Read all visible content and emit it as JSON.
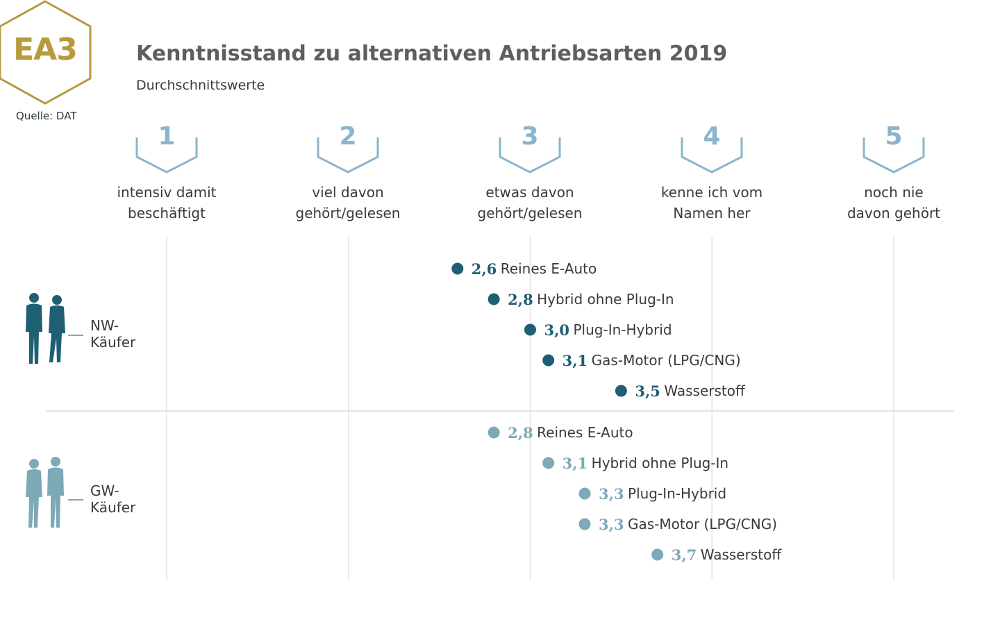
{
  "badge": {
    "code": "EA3",
    "color": "#b89a3e"
  },
  "source": "Quelle: DAT",
  "title": "Kenntnisstand zu alternativen Antriebsarten 2019",
  "subtitle": "Durchschnittswerte",
  "scale": [
    {
      "num": "1",
      "line1": "intensiv damit",
      "line2": "beschäftigt"
    },
    {
      "num": "2",
      "line1": "viel davon",
      "line2": "gehört/gelesen"
    },
    {
      "num": "3",
      "line1": "etwas davon",
      "line2": "gehört/gelesen"
    },
    {
      "num": "4",
      "line1": "kenne ich vom",
      "line2": "Namen her"
    },
    {
      "num": "5",
      "line1": "noch nie",
      "line2": "davon gehört"
    }
  ],
  "groups": [
    {
      "line1": "NW-",
      "line2": "Käufer",
      "icon": "couple-silhouette-icon"
    },
    {
      "line1": "GW-",
      "line2": "Käufer",
      "icon": "couple-silhouette-icon"
    }
  ],
  "chart_data": {
    "type": "scatter",
    "title": "Kenntnisstand zu alternativen Antriebsarten 2019",
    "subtitle": "Durchschnittswerte",
    "xlim": [
      1,
      5
    ],
    "x_ticks": [
      1,
      2,
      3,
      4,
      5
    ],
    "grid": true,
    "colors": {
      "NW": "#1f5f73",
      "GW": "#7ea9b7",
      "scale": "#8ab4cf"
    },
    "series": [
      {
        "name": "NW-Käufer",
        "points": [
          {
            "value": 2.6,
            "display": "2,6",
            "label": "Reines E-Auto"
          },
          {
            "value": 2.8,
            "display": "2,8",
            "label": "Hybrid ohne Plug-In"
          },
          {
            "value": 3.0,
            "display": "3,0",
            "label": "Plug-In-Hybrid"
          },
          {
            "value": 3.1,
            "display": "3,1",
            "label": "Gas-Motor (LPG/CNG)"
          },
          {
            "value": 3.5,
            "display": "3,5",
            "label": "Wasserstoff"
          }
        ]
      },
      {
        "name": "GW-Käufer",
        "points": [
          {
            "value": 2.8,
            "display": "2,8",
            "label": "Reines E-Auto"
          },
          {
            "value": 3.1,
            "display": "3,1",
            "label": "Hybrid ohne Plug-In"
          },
          {
            "value": 3.3,
            "display": "3,3",
            "label": "Plug-In-Hybrid"
          },
          {
            "value": 3.3,
            "display": "3,3",
            "label": "Gas-Motor (LPG/CNG)"
          },
          {
            "value": 3.7,
            "display": "3,7",
            "label": "Wasserstoff"
          }
        ]
      }
    ]
  }
}
